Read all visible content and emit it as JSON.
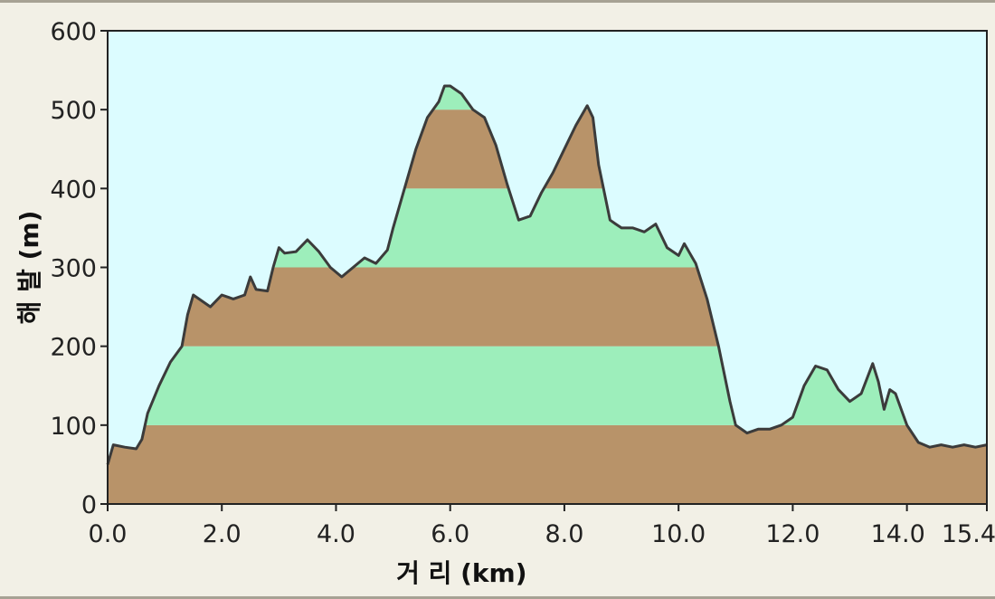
{
  "chart_data": {
    "type": "area",
    "title": "",
    "xlabel": "거 리  (km)",
    "ylabel": "해 발 (m)",
    "xlim": [
      0,
      15.4
    ],
    "ylim": [
      0,
      600
    ],
    "grid": false,
    "colors": {
      "plot_background": "#dcfcff",
      "band_brown": "#b89369",
      "band_green": "#9deebb",
      "outline": "#3b3b3b"
    },
    "bands": [
      {
        "from": 0,
        "to": 100,
        "color": "brown"
      },
      {
        "from": 100,
        "to": 200,
        "color": "green"
      },
      {
        "from": 200,
        "to": 300,
        "color": "brown"
      },
      {
        "from": 300,
        "to": 400,
        "color": "green"
      },
      {
        "from": 400,
        "to": 500,
        "color": "brown"
      },
      {
        "from": 500,
        "to": 600,
        "color": "green"
      }
    ],
    "x_ticks": [
      {
        "value": 0,
        "label": "0.0"
      },
      {
        "value": 2,
        "label": "2.0"
      },
      {
        "value": 4,
        "label": "4.0"
      },
      {
        "value": 6,
        "label": "6.0"
      },
      {
        "value": 8,
        "label": "8.0"
      },
      {
        "value": 10,
        "label": "10.0"
      },
      {
        "value": 12,
        "label": "12.0"
      },
      {
        "value": 14,
        "label": "14.0"
      },
      {
        "value": 15.4,
        "label": "15.4"
      }
    ],
    "y_ticks": [
      {
        "value": 0,
        "label": "0"
      },
      {
        "value": 100,
        "label": "100"
      },
      {
        "value": 200,
        "label": "200"
      },
      {
        "value": 300,
        "label": "300"
      },
      {
        "value": 400,
        "label": "400"
      },
      {
        "value": 500,
        "label": "500"
      },
      {
        "value": 600,
        "label": "600"
      }
    ],
    "x": [
      0,
      0.1,
      0.3,
      0.5,
      0.6,
      0.7,
      0.9,
      1.1,
      1.3,
      1.4,
      1.5,
      1.6,
      1.8,
      2.0,
      2.2,
      2.4,
      2.5,
      2.6,
      2.8,
      2.9,
      3.0,
      3.1,
      3.3,
      3.5,
      3.7,
      3.9,
      4.1,
      4.3,
      4.5,
      4.7,
      4.9,
      5.0,
      5.2,
      5.4,
      5.6,
      5.8,
      5.9,
      6.0,
      6.2,
      6.4,
      6.6,
      6.8,
      7.0,
      7.2,
      7.4,
      7.6,
      7.8,
      8.0,
      8.2,
      8.4,
      8.5,
      8.6,
      8.8,
      8.9,
      9.0,
      9.2,
      9.4,
      9.6,
      9.8,
      10.0,
      10.1,
      10.3,
      10.5,
      10.7,
      10.9,
      11.0,
      11.2,
      11.4,
      11.6,
      11.8,
      12.0,
      12.2,
      12.4,
      12.6,
      12.8,
      13.0,
      13.2,
      13.4,
      13.5,
      13.6,
      13.7,
      13.8,
      14.0,
      14.2,
      14.4,
      14.6,
      14.8,
      15.0,
      15.2,
      15.4
    ],
    "y": [
      50,
      75,
      72,
      70,
      82,
      115,
      150,
      180,
      200,
      240,
      265,
      260,
      250,
      265,
      260,
      265,
      288,
      272,
      270,
      300,
      325,
      318,
      320,
      335,
      320,
      300,
      288,
      300,
      312,
      305,
      322,
      350,
      400,
      450,
      490,
      510,
      530,
      530,
      520,
      500,
      490,
      455,
      405,
      360,
      365,
      395,
      420,
      450,
      480,
      505,
      490,
      430,
      360,
      355,
      350,
      350,
      345,
      355,
      325,
      315,
      330,
      305,
      260,
      200,
      130,
      100,
      90,
      95,
      95,
      100,
      110,
      150,
      175,
      170,
      145,
      130,
      140,
      178,
      155,
      120,
      145,
      140,
      100,
      78,
      72,
      75,
      72,
      75,
      72,
      75
    ]
  }
}
